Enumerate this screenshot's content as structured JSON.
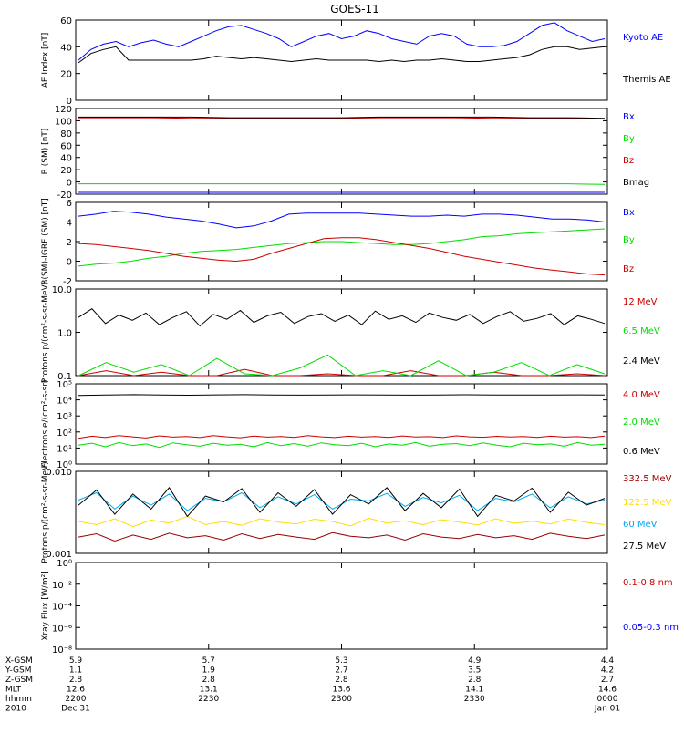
{
  "title": "GOES-11",
  "colors": {
    "black": "#000000",
    "blue": "#0000ff",
    "green": "#00dd00",
    "red": "#cc0000",
    "darkred": "#990000",
    "cyan": "#00aaee",
    "yellow": "#ffdd00"
  },
  "ephemeris": {
    "rows": [
      {
        "label": "X-GSM",
        "values": [
          "5.9",
          "5.7",
          "5.3",
          "4.9",
          "4.4"
        ]
      },
      {
        "label": "Y-GSM",
        "values": [
          "1.1",
          "1.9",
          "2.7",
          "3.5",
          "4.2"
        ]
      },
      {
        "label": "Z-GSM",
        "values": [
          "2.8",
          "2.8",
          "2.8",
          "2.8",
          "2.7"
        ]
      },
      {
        "label": "MLT",
        "values": [
          "12.6",
          "13.1",
          "13.6",
          "14.1",
          "14.6"
        ]
      },
      {
        "label": "hhmm",
        "values": [
          "2200",
          "2230",
          "2300",
          "2330",
          "0000"
        ]
      },
      {
        "label": "2010",
        "values": [
          "Dec 31",
          "",
          "",
          "",
          "Jan 01"
        ]
      }
    ]
  },
  "chart_data": [
    {
      "type": "line",
      "ylabel": "AE Index [nT]",
      "ylim": [
        0,
        60
      ],
      "yscale": "linear",
      "ticks": [
        "0",
        "20",
        "40",
        "60"
      ],
      "series": [
        {
          "name": "Kyoto AE",
          "color": "#0000ff",
          "values": [
            30,
            38,
            42,
            44,
            40,
            43,
            45,
            42,
            40,
            44,
            48,
            52,
            55,
            56,
            53,
            50,
            46,
            40,
            44,
            48,
            50,
            46,
            48,
            52,
            50,
            46,
            44,
            42,
            48,
            50,
            48,
            42,
            40,
            40,
            41,
            44,
            50,
            56,
            58,
            52,
            48,
            44,
            46
          ]
        },
        {
          "name": "Themis AE",
          "color": "#000000",
          "values": [
            28,
            35,
            38,
            40,
            30,
            30,
            30,
            30,
            30,
            30,
            31,
            33,
            32,
            31,
            32,
            31,
            30,
            29,
            30,
            31,
            30,
            30,
            30,
            30,
            29,
            30,
            29,
            30,
            30,
            31,
            30,
            29,
            29,
            30,
            31,
            32,
            34,
            38,
            40,
            40,
            38,
            39,
            40
          ]
        }
      ]
    },
    {
      "type": "line",
      "ylabel": "B (SM) [nT]",
      "ylim": [
        -20,
        120
      ],
      "yscale": "linear",
      "ticks": [
        "-20",
        "0",
        "20",
        "40",
        "60",
        "80",
        "100",
        "120"
      ],
      "series": [
        {
          "name": "Bx",
          "color": "#0000ff",
          "values": [
            -17,
            -17,
            -17,
            -17,
            -17,
            -17,
            -17,
            -17,
            -17,
            -17,
            -17,
            -17,
            -17,
            -17,
            -17
          ]
        },
        {
          "name": "By",
          "color": "#00dd00",
          "values": [
            -3,
            -3,
            -3,
            -3,
            -3,
            -3,
            -3,
            -3,
            -3,
            -3,
            -3,
            -3,
            -3,
            -3,
            -4
          ]
        },
        {
          "name": "Bz",
          "color": "#cc0000",
          "values": [
            105,
            105,
            105,
            104,
            104,
            104,
            104,
            104,
            105,
            105,
            105,
            104,
            104,
            104,
            103
          ]
        },
        {
          "name": "Bmag",
          "color": "#000000",
          "values": [
            106,
            106,
            106,
            106,
            105,
            105,
            105,
            105,
            106,
            106,
            106,
            106,
            105,
            105,
            104
          ]
        }
      ]
    },
    {
      "type": "line",
      "ylabel": "B(SM)-IGRF (SM) [nT]",
      "ylim": [
        -2,
        6
      ],
      "yscale": "linear",
      "ticks": [
        "-2",
        "0",
        "2",
        "4",
        "6"
      ],
      "series": [
        {
          "name": "Bx",
          "color": "#0000ff",
          "values": [
            4.6,
            4.8,
            5.1,
            5.0,
            4.8,
            4.5,
            4.3,
            4.1,
            3.8,
            3.4,
            3.6,
            4.1,
            4.8,
            4.9,
            4.9,
            4.9,
            4.9,
            4.8,
            4.7,
            4.6,
            4.6,
            4.7,
            4.6,
            4.8,
            4.8,
            4.7,
            4.5,
            4.3,
            4.3,
            4.2,
            4.0
          ]
        },
        {
          "name": "By",
          "color": "#00dd00",
          "values": [
            -0.5,
            -0.3,
            -0.2,
            0.0,
            0.3,
            0.5,
            0.8,
            1.0,
            1.1,
            1.2,
            1.4,
            1.6,
            1.8,
            1.9,
            2.0,
            2.0,
            1.9,
            1.8,
            1.7,
            1.7,
            1.8,
            2.0,
            2.2,
            2.5,
            2.6,
            2.8,
            2.9,
            3.0,
            3.1,
            3.2,
            3.3
          ]
        },
        {
          "name": "Bz",
          "color": "#cc0000",
          "values": [
            1.8,
            1.7,
            1.5,
            1.3,
            1.1,
            0.8,
            0.5,
            0.3,
            0.1,
            0.0,
            0.2,
            0.8,
            1.3,
            1.8,
            2.3,
            2.4,
            2.4,
            2.2,
            1.9,
            1.6,
            1.3,
            0.9,
            0.5,
            0.2,
            -0.1,
            -0.4,
            -0.7,
            -0.9,
            -1.1,
            -1.3,
            -1.4
          ]
        }
      ]
    },
    {
      "type": "line",
      "ylabel": "Protons p/(cm²-s-sr-MeV)",
      "ylim": [
        0.1,
        10
      ],
      "yscale": "log",
      "ticks": [
        "0.1",
        "1.0",
        "10.0"
      ],
      "series": [
        {
          "name": "12 MeV",
          "color": "#cc0000",
          "values": [
            0.1,
            0.13,
            0.1,
            0.12,
            0.1,
            0.1,
            0.14,
            0.1,
            0.1,
            0.11,
            0.1,
            0.1,
            0.13,
            0.1,
            0.1,
            0.12,
            0.1,
            0.1,
            0.11,
            0.1
          ]
        },
        {
          "name": "6.5 MeV",
          "color": "#00dd00",
          "values": [
            0.1,
            0.2,
            0.12,
            0.18,
            0.1,
            0.25,
            0.11,
            0.1,
            0.15,
            0.3,
            0.1,
            0.13,
            0.1,
            0.22,
            0.1,
            0.12,
            0.2,
            0.1,
            0.18,
            0.11
          ]
        },
        {
          "name": "2.4 MeV",
          "color": "#000000",
          "values": [
            2.2,
            3.5,
            1.6,
            2.5,
            1.9,
            2.8,
            1.5,
            2.2,
            3.0,
            1.4,
            2.6,
            2.0,
            3.2,
            1.7,
            2.4,
            2.9,
            1.6,
            2.3,
            2.7,
            1.8,
            2.5,
            1.5,
            3.1,
            2.0,
            2.4,
            1.7,
            2.8,
            2.2,
            1.9,
            2.6,
            1.6,
            2.3,
            3.0,
            1.8,
            2.1,
            2.7,
            1.5,
            2.4,
            2.0,
            1.6
          ]
        }
      ]
    },
    {
      "type": "line",
      "ylabel": "Electrons e/(cm²-s-sr)",
      "ylim": [
        1,
        100000
      ],
      "yscale": "log",
      "ticks": [
        "10⁰",
        "10¹",
        "10²",
        "10³",
        "10⁴",
        "10⁵"
      ],
      "series": [
        {
          "name": "4.0 MeV",
          "color": "#cc0000",
          "values": [
            40,
            55,
            45,
            60,
            50,
            42,
            58,
            48,
            52,
            45,
            60,
            50,
            44,
            56,
            48,
            53,
            46,
            59,
            50,
            45,
            55,
            48,
            52,
            46,
            57,
            49,
            51,
            45,
            58,
            50,
            47,
            54,
            49,
            52,
            46,
            55,
            48,
            51,
            45,
            56
          ]
        },
        {
          "name": "2.0 MeV",
          "color": "#00dd00",
          "values": [
            15,
            20,
            12,
            22,
            14,
            18,
            11,
            21,
            16,
            13,
            20,
            15,
            17,
            12,
            22,
            14,
            19,
            13,
            21,
            16,
            14,
            20,
            12,
            18,
            15,
            22,
            13,
            17,
            19,
            14,
            21,
            15,
            12,
            20,
            16,
            18,
            13,
            22,
            15,
            17
          ]
        },
        {
          "name": "0.6 MeV",
          "color": "#000000",
          "values": [
            19000,
            20000,
            21000,
            20000,
            19500,
            20500,
            21000,
            20000,
            19800,
            20200,
            20500,
            20000,
            19700,
            20300,
            20800,
            20100,
            19900,
            20400,
            20600,
            20000
          ]
        }
      ]
    },
    {
      "type": "line",
      "ylabel": "Protons p/(cm²-s-sr-MeV)",
      "ylim": [
        0.001,
        0.1
      ],
      "yscale": "log",
      "ticks": [
        "0.001",
        "0.010"
      ],
      "series": [
        {
          "name": "332.5 MeV",
          "color": "#990000",
          "values": [
            0.0025,
            0.003,
            0.002,
            0.0028,
            0.0022,
            0.0031,
            0.0024,
            0.0027,
            0.0021,
            0.003,
            0.0023,
            0.0029,
            0.0025,
            0.0022,
            0.0032,
            0.0026,
            0.0024,
            0.0028,
            0.0021,
            0.003,
            0.0025,
            0.0023,
            0.0029,
            0.0024,
            0.0027,
            0.0022,
            0.0031,
            0.0026,
            0.0023,
            0.0028
          ]
        },
        {
          "name": "122.5 MeV",
          "color": "#ffdd00",
          "values": [
            0.006,
            0.005,
            0.007,
            0.0045,
            0.0065,
            0.0055,
            0.008,
            0.005,
            0.006,
            0.0048,
            0.007,
            0.0058,
            0.0052,
            0.0068,
            0.006,
            0.0047,
            0.0072,
            0.0055,
            0.0062,
            0.005,
            0.0066,
            0.0058,
            0.0049,
            0.007,
            0.0054,
            0.0061,
            0.0052,
            0.0069,
            0.0057,
            0.005
          ]
        },
        {
          "name": "60 MeV",
          "color": "#00aaee",
          "values": [
            0.02,
            0.03,
            0.012,
            0.025,
            0.015,
            0.028,
            0.011,
            0.022,
            0.018,
            0.03,
            0.013,
            0.024,
            0.016,
            0.027,
            0.012,
            0.021,
            0.019,
            0.029,
            0.014,
            0.023,
            0.017,
            0.026,
            0.011,
            0.022,
            0.018,
            0.028,
            0.013,
            0.024,
            0.016,
            0.02
          ]
        },
        {
          "name": "27.5 MeV",
          "color": "#000000",
          "values": [
            0.015,
            0.035,
            0.009,
            0.028,
            0.012,
            0.04,
            0.008,
            0.025,
            0.018,
            0.038,
            0.01,
            0.03,
            0.014,
            0.036,
            0.009,
            0.027,
            0.016,
            0.04,
            0.011,
            0.029,
            0.013,
            0.037,
            0.008,
            0.026,
            0.019,
            0.039,
            0.01,
            0.031,
            0.015,
            0.022
          ]
        }
      ]
    },
    {
      "type": "line",
      "ylabel": "Xray Flux [W/m²]",
      "ylim": [
        1e-08,
        1
      ],
      "yscale": "log",
      "ticks": [
        "10⁻⁸",
        "10⁻⁶",
        "10⁻⁴",
        "10⁻²",
        "10⁰"
      ],
      "series": [
        {
          "name": "0.1-0.8 nm",
          "color": "#cc0000",
          "values": []
        },
        {
          "name": "0.05-0.3 nm",
          "color": "#0000ff",
          "values": []
        }
      ]
    }
  ]
}
